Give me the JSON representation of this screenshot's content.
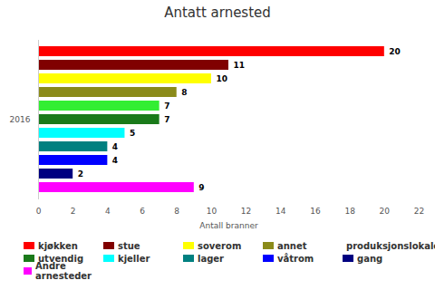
{
  "chart_data": {
    "type": "bar",
    "title": "Antatt arnested",
    "orientation": "horizontal",
    "categories": [
      "2016"
    ],
    "series": [
      {
        "name": "kjøkken",
        "color": "#ff0000",
        "values": [
          20
        ]
      },
      {
        "name": "stue",
        "color": "#800000",
        "values": [
          11
        ]
      },
      {
        "name": "soverom",
        "color": "#ffff00",
        "values": [
          10
        ]
      },
      {
        "name": "annet",
        "color": "#8b8b1a",
        "values": [
          8
        ]
      },
      {
        "name": "produksjonslokale",
        "color": "#33ee33",
        "values": [
          7
        ]
      },
      {
        "name": "utvendig",
        "color": "#1a7a1a",
        "values": [
          7
        ]
      },
      {
        "name": "kjeller",
        "color": "#00ffff",
        "values": [
          5
        ]
      },
      {
        "name": "lager",
        "color": "#008080",
        "values": [
          4
        ]
      },
      {
        "name": "våtrom",
        "color": "#0000ff",
        "values": [
          4
        ]
      },
      {
        "name": "gang",
        "color": "#000080",
        "values": [
          2
        ]
      },
      {
        "name": "Andre arnesteder",
        "color": "#ff00ff",
        "values": [
          9
        ]
      }
    ],
    "xlabel": "Antall branner",
    "xlim": [
      0,
      22
    ],
    "xticks": [
      0,
      2,
      4,
      6,
      8,
      10,
      12,
      14,
      16,
      18,
      20,
      22
    ],
    "grid": false,
    "data_labels": true,
    "legend": "bottom"
  }
}
